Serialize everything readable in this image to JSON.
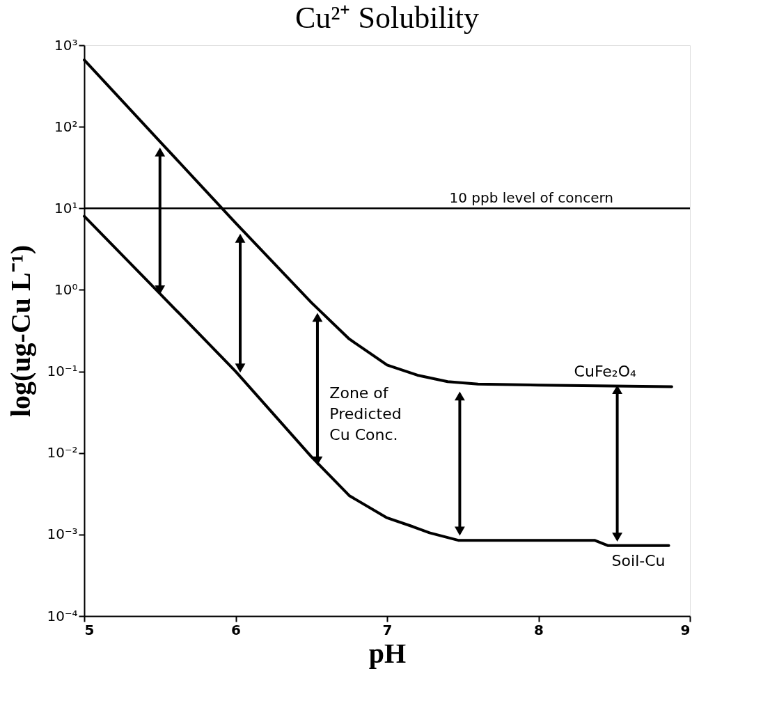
{
  "chart_data": {
    "type": "line",
    "title": "Cu²⁺ Solubility",
    "xlabel": "pH",
    "ylabel": "log(ug-Cu L⁻¹)",
    "log": "y",
    "grid": false,
    "legend": false,
    "line_style": "solid",
    "marker": "none",
    "xlim": [
      5,
      9
    ],
    "xticks": [
      5,
      6,
      7,
      8,
      9
    ],
    "ylim": [
      0.0001,
      1000
    ],
    "yticks": [
      {
        "value": 0.0001,
        "label": "10⁻⁴"
      },
      {
        "value": 0.001,
        "label": "10⁻³"
      },
      {
        "value": 0.01,
        "label": "10⁻²"
      },
      {
        "value": 0.1,
        "label": "10⁻¹"
      },
      {
        "value": 1,
        "label": "10⁰"
      },
      {
        "value": 10,
        "label": "10¹"
      },
      {
        "value": 100,
        "label": "10²"
      },
      {
        "value": 1000,
        "label": "10³"
      }
    ],
    "series": [
      {
        "name": "CuFe₂O₄",
        "color": "#000000",
        "x": [
          5,
          5.5,
          6,
          6.5,
          6.75,
          7.0,
          7.2,
          7.4,
          7.6,
          8.0,
          8.88
        ],
        "values": [
          660,
          66,
          6.6,
          0.7,
          0.25,
          0.12,
          0.09,
          0.075,
          0.07,
          0.068,
          0.065
        ]
      },
      {
        "name": "Soil-Cu",
        "color": "#000000",
        "x": [
          5,
          5.5,
          6,
          6.5,
          6.75,
          7.0,
          7.17,
          7.28,
          7.47,
          8.37,
          8.46,
          8.86
        ],
        "values": [
          8,
          0.9,
          0.1,
          0.009,
          0.003,
          0.0016,
          0.00125,
          0.00105,
          0.00085,
          0.00085,
          0.00073,
          0.00073
        ]
      },
      {
        "color": "#000000",
        "marker": "triangle",
        "x": [
          5.5,
          5.5
        ],
        "values": [
          1.0,
          49
        ]
      },
      {
        "color": "#000000",
        "marker": "triangle",
        "x": [
          6.03,
          6.03
        ],
        "values": [
          0.11,
          4.3
        ]
      },
      {
        "color": "#000000",
        "marker": "triangle",
        "x": [
          6.54,
          6.54
        ],
        "values": [
          0.008,
          0.46
        ]
      },
      {
        "color": "#000000",
        "marker": "triangle",
        "x": [
          7.48,
          7.48
        ],
        "values": [
          0.0011,
          0.05
        ]
      },
      {
        "color": "#000000",
        "marker": "triangle",
        "x": [
          8.52,
          8.52
        ],
        "values": [
          0.00093,
          0.06
        ]
      }
    ],
    "ref_lines": [
      {
        "axis": "y",
        "value": 10,
        "label": "10 ppb level of concern",
        "color": "#000000"
      }
    ],
    "annotations": [
      "Zone of\nPredicted\nCu Conc."
    ]
  }
}
